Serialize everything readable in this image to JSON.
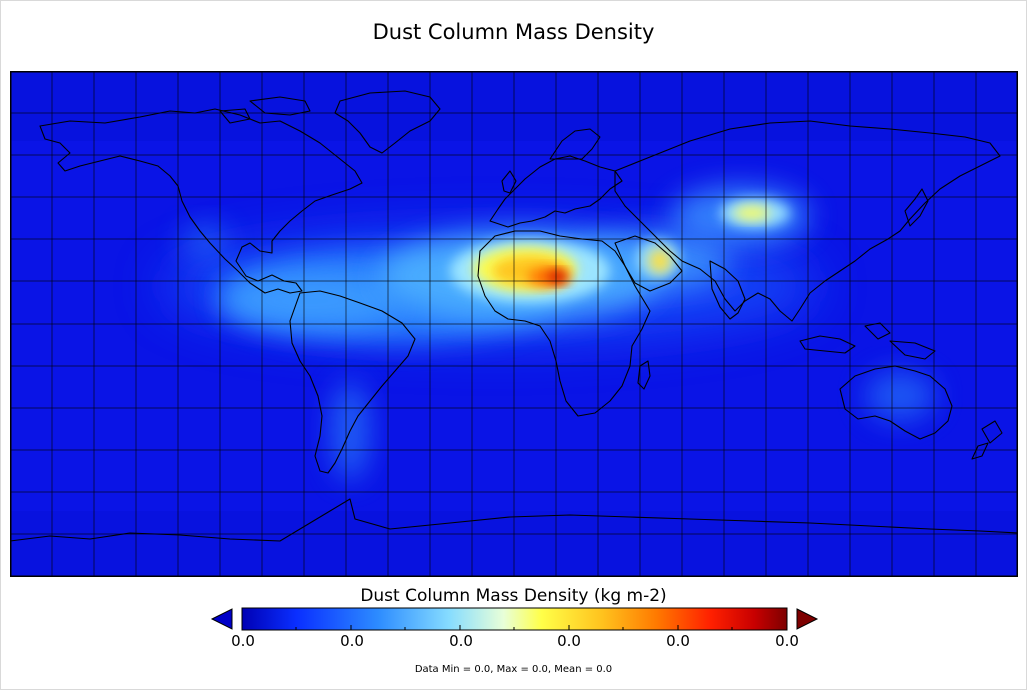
{
  "title": "Dust Column Mass Density",
  "colorbar": {
    "label": "Dust Column Mass Density (kg m-2)",
    "tick_labels": [
      "0.0",
      "0.0",
      "0.0",
      "0.0",
      "0.0",
      "0.0"
    ],
    "colors": [
      "#0000b4",
      "#0a2fff",
      "#2d8cff",
      "#86dcff",
      "#e8ffd8",
      "#ffff48",
      "#ffc31e",
      "#ff7a00",
      "#ff2000",
      "#c80000",
      "#7d0000"
    ]
  },
  "stats": "Data Min = 0.0, Max = 0.0, Mean = 0.0",
  "map": {
    "projection": "equirectangular",
    "ocean_color": "#0a1ae8",
    "gridlines": true
  }
}
